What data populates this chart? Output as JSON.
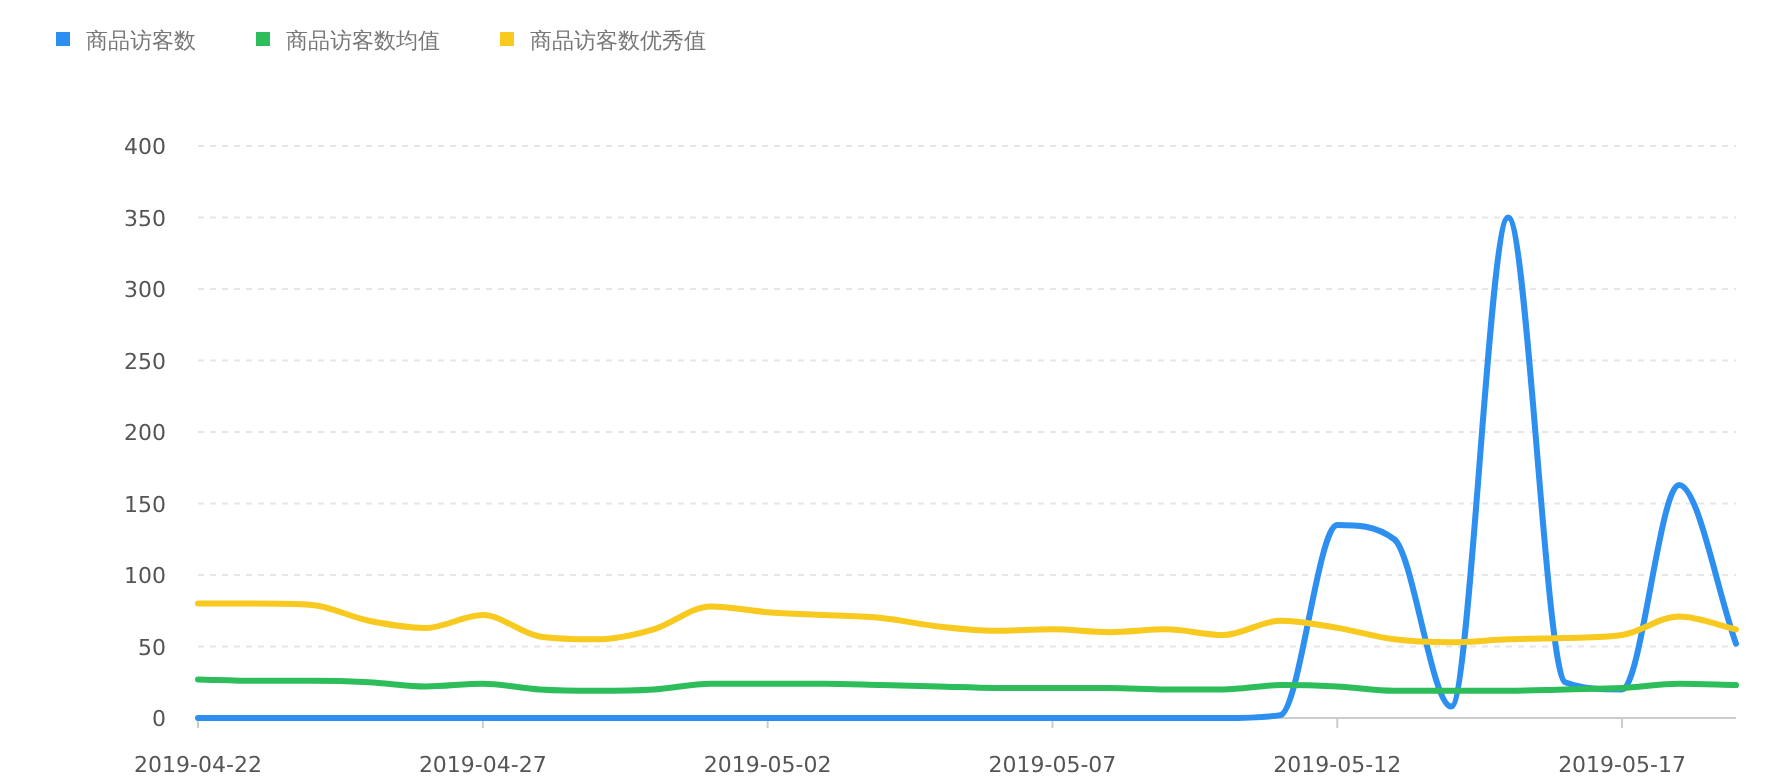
{
  "chart_data": {
    "type": "line",
    "x": [
      "2019-04-22",
      "2019-04-23",
      "2019-04-24",
      "2019-04-25",
      "2019-04-26",
      "2019-04-27",
      "2019-04-28",
      "2019-04-29",
      "2019-04-30",
      "2019-05-01",
      "2019-05-02",
      "2019-05-03",
      "2019-05-04",
      "2019-05-05",
      "2019-05-06",
      "2019-05-07",
      "2019-05-08",
      "2019-05-09",
      "2019-05-10",
      "2019-05-11",
      "2019-05-12",
      "2019-05-13",
      "2019-05-14",
      "2019-05-15",
      "2019-05-16",
      "2019-05-17",
      "2019-05-18",
      "2019-05-19"
    ],
    "series": [
      {
        "name": "商品访客数",
        "color": "#2d8ff0",
        "values": [
          0,
          0,
          0,
          0,
          0,
          0,
          0,
          0,
          0,
          0,
          0,
          0,
          0,
          0,
          0,
          0,
          0,
          0,
          0,
          2,
          135,
          125,
          8,
          350,
          25,
          20,
          163,
          52
        ]
      },
      {
        "name": "商品访客数均值",
        "color": "#2dbd5a",
        "values": [
          27,
          26,
          26,
          25,
          22,
          24,
          20,
          19,
          20,
          24,
          24,
          24,
          23,
          22,
          21,
          21,
          21,
          20,
          20,
          23,
          22,
          19,
          19,
          19,
          20,
          21,
          24,
          23
        ]
      },
      {
        "name": "商品访客数优秀值",
        "color": "#f8c91e",
        "values": [
          80,
          80,
          79,
          68,
          63,
          72,
          57,
          55,
          62,
          78,
          74,
          72,
          70,
          64,
          61,
          62,
          60,
          62,
          58,
          68,
          63,
          55,
          53,
          55,
          56,
          58,
          71,
          62
        ]
      }
    ],
    "xlim": [
      "2019-04-22",
      "2019-05-19"
    ],
    "xticks": [
      "2019-04-22",
      "2019-04-27",
      "2019-05-02",
      "2019-05-07",
      "2019-05-12",
      "2019-05-17"
    ],
    "ylim": [
      0,
      400
    ],
    "yticks": [
      0,
      50,
      100,
      150,
      200,
      250,
      300,
      350,
      400
    ],
    "grid": "y",
    "legend": "top left",
    "marker": "none",
    "line_style": "solid"
  }
}
